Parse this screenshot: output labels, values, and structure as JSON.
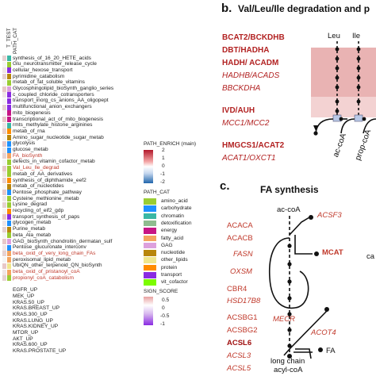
{
  "left": {
    "header": [
      "T_TEST",
      "PATH_CAT"
    ],
    "rows": [
      {
        "label": "synthesis_of_16_20_HETE_acids",
        "color": "#222",
        "c1": "#3ab7a5",
        "c2": "#e6d2d2"
      },
      {
        "label": "Glu_neurotransmitter_release_cycle",
        "color": "#222",
        "c1": "#9acd32",
        "c2": "#f5f5f5"
      },
      {
        "label": "cellular_hexose_transport",
        "color": "#222",
        "c1": "#8a2be2",
        "c2": "#f0e6e6"
      },
      {
        "label": "pyrimidine_catabolism",
        "color": "#222",
        "c1": "#b8860b",
        "c2": "#e6d2d2"
      },
      {
        "label": "metab_of_fat_soluble_vitamins",
        "color": "#222",
        "c1": "#9acd32",
        "c2": "#f5f5f5"
      },
      {
        "label": "Glycosphingolipid_bioSynth_ganglio_series",
        "color": "#222",
        "c1": "#dda0dd",
        "c2": "#e8c8c8"
      },
      {
        "label": "c_coupled_chloride_cotransporters",
        "color": "#222",
        "c1": "#8a2be2",
        "c2": "#f0e6e6"
      },
      {
        "label": "transport_inorg_cs_anions_AA_oligopept",
        "color": "#222",
        "c1": "#8a2be2",
        "c2": "#f5f5f5"
      },
      {
        "label": "multifunctional_anion_exchangers",
        "color": "#222",
        "c1": "#8a2be2",
        "c2": "#e6d2d2"
      },
      {
        "label": "mito_biogenesis",
        "color": "#222",
        "c1": "#c71585",
        "c2": "#f5f5f5"
      },
      {
        "label": "transcriptional_act_of_mito_biogenesis",
        "color": "#222",
        "c1": "#c71585",
        "c2": "#e8c8c8"
      },
      {
        "label": "rmts_methylate_histone_arginines",
        "color": "#222",
        "c1": "#3ab7a5",
        "c2": "#f0e6e6"
      },
      {
        "label": "metab_of_rna",
        "color": "#222",
        "c1": "#ff8c00",
        "c2": "#e6d2d2"
      },
      {
        "label": "Amino_sugar_nucleotide_sugar_metab",
        "color": "#222",
        "c1": "#b8860b",
        "c2": "#f5f5f5"
      },
      {
        "label": "glycolysis",
        "color": "#222",
        "c1": "#1e90ff",
        "c2": "#e8c8c8"
      },
      {
        "label": "glucose_metab",
        "color": "#222",
        "c1": "#1e90ff",
        "c2": "#f0e6e6"
      },
      {
        "label": "FA_bioSynth",
        "color": "#c0392b",
        "c1": "#f4a460",
        "c2": "#e6d2d2"
      },
      {
        "label": "defects_in_vitamin_cofactor_metab",
        "color": "#222",
        "c1": "#9acd32",
        "c2": "#f5f5f5"
      },
      {
        "label": "Val_Leu_Ile_degrad",
        "color": "#c0392b",
        "c1": "#9acd32",
        "c2": "#e8c8c8"
      },
      {
        "label": "metab_of_AA_derivatives",
        "color": "#222",
        "c1": "#9acd32",
        "c2": "#f0e6e6"
      },
      {
        "label": "synthesis_of_diphthamide_eef2",
        "color": "#222",
        "c1": "#ff8c00",
        "c2": "#e6d2d2"
      },
      {
        "label": "metab_of_nucleotides",
        "color": "#222",
        "c1": "#b8860b",
        "c2": "#f5f5f5"
      },
      {
        "label": "Pentose_phosphate_pathway",
        "color": "#222",
        "c1": "#1e90ff",
        "c2": "#e8c8c8"
      },
      {
        "label": "Cysteine_methionine_metab",
        "color": "#222",
        "c1": "#9acd32",
        "c2": "#f0e6e6"
      },
      {
        "label": "Lysine_degrad",
        "color": "#222",
        "c1": "#9acd32",
        "c2": "#e6d2d2"
      },
      {
        "label": "recycling_of_eif2_gdp",
        "color": "#222",
        "c1": "#ff8c00",
        "c2": "#f5f5f5"
      },
      {
        "label": "transport_synthesis_of_paps",
        "color": "#222",
        "c1": "#8a2be2",
        "c2": "#e8c8c8"
      },
      {
        "label": "glycogen_metab",
        "color": "#222",
        "c1": "#1e90ff",
        "c2": "#f0e6e6"
      },
      {
        "label": "Purine_metab",
        "color": "#222",
        "c1": "#b8860b",
        "c2": "#e6d2d2"
      },
      {
        "label": "beta_Ala_metab",
        "color": "#222",
        "c1": "#9acd32",
        "c2": "#f5f5f5"
      },
      {
        "label": "GAG_bioSynth_chondroitin_dermatan_sulf",
        "color": "#222",
        "c1": "#dda0dd",
        "c2": "#e8c8c8"
      },
      {
        "label": "Pentose_glucuronate_interconv",
        "color": "#222",
        "c1": "#1e90ff",
        "c2": "#f0e6e6"
      },
      {
        "label": "beta_oxid_of_very_long_chain_FAs",
        "color": "#c0392b",
        "c1": "#f4a460",
        "c2": "#e6d2d2"
      },
      {
        "label": "peroxisomal_lipid_metab",
        "color": "#222",
        "c1": "#f4a460",
        "c2": "#f5f5f5"
      },
      {
        "label": "UbiQN_other_terpenoid_QN_bioSynth",
        "color": "#222",
        "c1": "#f0e68c",
        "c2": "#e8c8c8"
      },
      {
        "label": "beta_oxid_of_pristanoyl_coA",
        "color": "#c0392b",
        "c1": "#f4a460",
        "c2": "#f0e6e6"
      },
      {
        "label": "propionyl_coA_catabolism",
        "color": "#c0392b",
        "c1": "#9acd32",
        "c2": "#e6d2d2"
      },
      {
        "label": "",
        "color": "#222",
        "c1": "#ffffff",
        "c2": "#ffffff"
      },
      {
        "label": "EGFR_UP",
        "color": "#222",
        "c1": "#ffffff",
        "c2": "#ffffff"
      },
      {
        "label": "MEK_UP",
        "color": "#222",
        "c1": "#ffffff",
        "c2": "#ffffff"
      },
      {
        "label": "KRAS.50_UP",
        "color": "#222",
        "c1": "#ffffff",
        "c2": "#ffffff"
      },
      {
        "label": "KRAS.BREAST_UP",
        "color": "#222",
        "c1": "#ffffff",
        "c2": "#ffffff"
      },
      {
        "label": "KRAS.300_UP",
        "color": "#222",
        "c1": "#ffffff",
        "c2": "#ffffff"
      },
      {
        "label": "KRAS.LUNG_UP",
        "color": "#222",
        "c1": "#ffffff",
        "c2": "#ffffff"
      },
      {
        "label": "KRAS.KIDNEY_UP",
        "color": "#222",
        "c1": "#ffffff",
        "c2": "#ffffff"
      },
      {
        "label": "MTOR_UP",
        "color": "#222",
        "c1": "#ffffff",
        "c2": "#ffffff"
      },
      {
        "label": "AKT_UP",
        "color": "#222",
        "c1": "#ffffff",
        "c2": "#ffffff"
      },
      {
        "label": "KRAS.600_UP",
        "color": "#222",
        "c1": "#ffffff",
        "c2": "#ffffff"
      },
      {
        "label": "KRAS.PROSTATE_UP",
        "color": "#222",
        "c1": "#ffffff",
        "c2": "#ffffff"
      }
    ]
  },
  "legend": {
    "path_enrich_title": "PATH_ENRICH (main)",
    "path_enrich_ticks": [
      "2",
      "1",
      "0",
      "-1",
      "-2"
    ],
    "path_cat_title": "PATH_CAT",
    "categories": [
      {
        "label": "amino_acid",
        "color": "#9acd32"
      },
      {
        "label": "carbohydrate",
        "color": "#1e90ff"
      },
      {
        "label": "chromatin",
        "color": "#3ab7a5"
      },
      {
        "label": "detoxification",
        "color": "#8fbc8f"
      },
      {
        "label": "energy",
        "color": "#c71585"
      },
      {
        "label": "fatty_acid",
        "color": "#f4a460"
      },
      {
        "label": "GAG",
        "color": "#dda0dd"
      },
      {
        "label": "nucleotide",
        "color": "#b8860b"
      },
      {
        "label": "other_lipids",
        "color": "#f0e68c"
      },
      {
        "label": "protein",
        "color": "#ff8c00"
      },
      {
        "label": "transport",
        "color": "#8a2be2"
      },
      {
        "label": "vit_cofactor",
        "color": "#7cfc00"
      }
    ],
    "sign_title": "SIGN_SCORE",
    "sign_ticks": [
      "0.5",
      "0",
      "-0.5",
      "-1"
    ]
  },
  "panel_b": {
    "letter": "b.",
    "title": "Val/Leu/Ile degradation and p",
    "leu": "Leu",
    "ile": "Ile",
    "enzymes": [
      {
        "text": "BCAT2/BCKDHB",
        "bold": true
      },
      {
        "text": "DBT/HADHA",
        "bold": true
      },
      {
        "text": "HADH/ ACADM",
        "bold": true
      },
      {
        "text": "HADHB/ACADS",
        "bold": false
      },
      {
        "text": "BBCKDHA",
        "bold": false
      },
      {
        "text": "IVD/AUH",
        "bold": true
      },
      {
        "text": "MCC1/MCC2",
        "bold": false
      },
      {
        "text": "HMGCS1/ACAT2",
        "bold": true
      },
      {
        "text": "ACAT1/OXCT1",
        "bold": false
      }
    ],
    "ac_coa": "ac-coA",
    "prop_coa": "prop-coA"
  },
  "panel_c": {
    "letter": "c.",
    "title": "FA synthesis",
    "ac_coa": "ac-coA",
    "left_enzymes": [
      {
        "text": "ACACA",
        "italic": false
      },
      {
        "text": "ACACB",
        "italic": false
      },
      {
        "text": "FASN",
        "italic": true
      },
      {
        "text": "OXSM",
        "italic": true
      },
      {
        "text": "CBR4",
        "italic": false
      },
      {
        "text": "HSD17B8",
        "italic": true
      },
      {
        "text": "ACSBG1",
        "italic": false
      },
      {
        "text": "ACSBG2",
        "italic": false
      },
      {
        "text": "ACSL6",
        "italic": false
      },
      {
        "text": "ACSL3",
        "italic": true
      },
      {
        "text": "ACSL5",
        "italic": true
      }
    ],
    "acsf3": "ACSF3",
    "mcat": "MCAT",
    "mecr": "MECR",
    "acot4": "ACOT4",
    "fa": "FA",
    "long_chain": "long chain",
    "acyl_coa": "acyl-coA",
    "cut_label": "ca"
  }
}
